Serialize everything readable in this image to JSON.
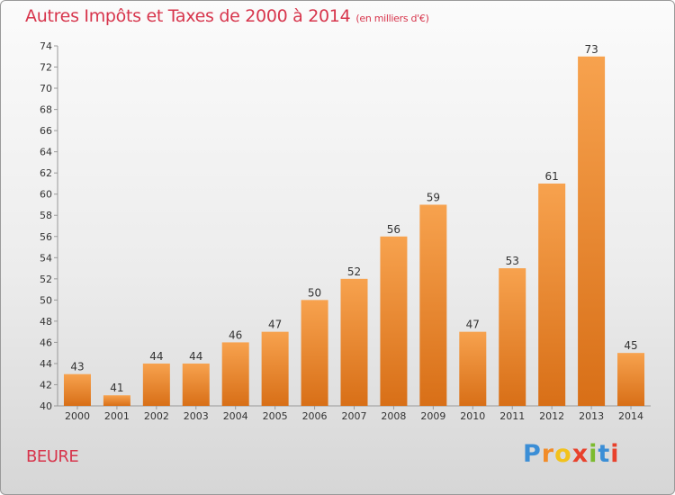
{
  "header": {
    "title": "Autres Impôts et Taxes de 2000 à 2014",
    "unit": "(en milliers d'€)"
  },
  "footer": {
    "commune": "BEURE",
    "logo_letters": [
      "P",
      "r",
      "o",
      "x",
      "i",
      "t",
      "i"
    ],
    "logo_colors": [
      "#3b8ed6",
      "#f28c28",
      "#f2c21c",
      "#e8412c",
      "#7cbb2f",
      "#3b8ed6",
      "#e8412c"
    ]
  },
  "colors": {
    "bar_light": "#f7a24e",
    "bar_dark": "#d86f17",
    "title": "#d7354c"
  },
  "chart_data": {
    "type": "bar",
    "title": "Autres Impôts et Taxes de 2000 à 2014",
    "subtitle": "(en milliers d'€)",
    "xlabel": "",
    "ylabel": "",
    "ylim": [
      40,
      74
    ],
    "ytick_step": 2,
    "grid": false,
    "categories": [
      "2000",
      "2001",
      "2002",
      "2003",
      "2004",
      "2005",
      "2006",
      "2007",
      "2008",
      "2009",
      "2010",
      "2011",
      "2012",
      "2013",
      "2014"
    ],
    "values": [
      43,
      41,
      44,
      44,
      46,
      47,
      50,
      52,
      56,
      59,
      47,
      53,
      61,
      73,
      45
    ]
  }
}
